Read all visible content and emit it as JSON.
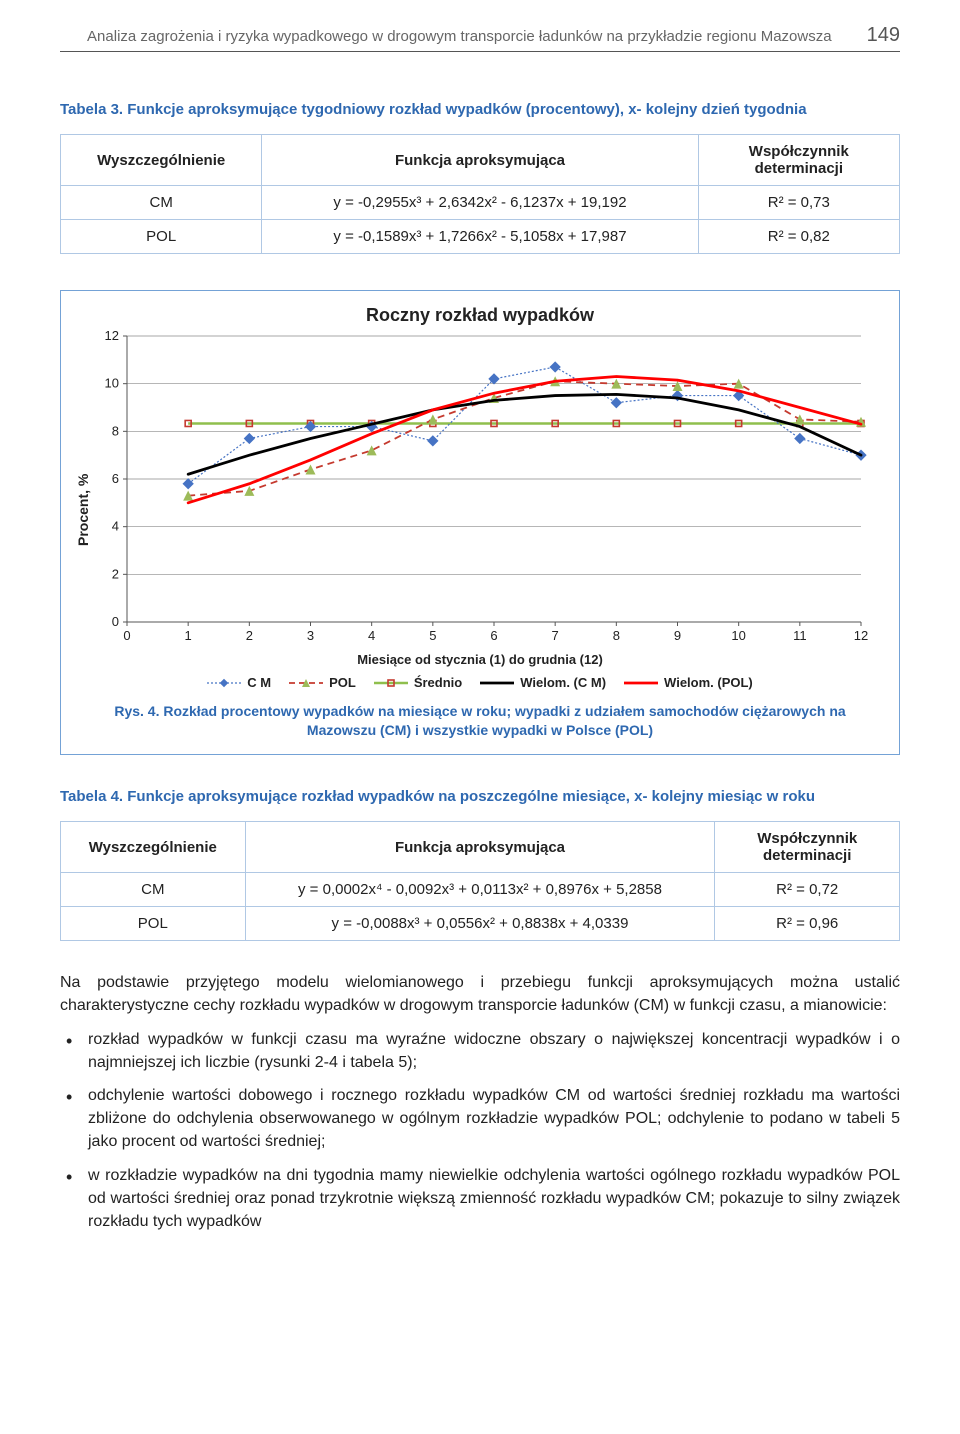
{
  "header": {
    "running_title": "Analiza zagrożenia i ryzyka wypadkowego w drogowym transporcie ładunków na przykładzie regionu Mazowsza",
    "page_number": "149"
  },
  "table3": {
    "caption": "Tabela 3. Funkcje aproksymujące tygodniowy rozkład wypadków (procentowy), x- kolejny dzień tygodnia",
    "col1": "Wyszczególnienie",
    "col2": "Funkcja aproksymująca",
    "col3": "Współczynnik determinacji",
    "r1c1": "CM",
    "r1c2": "y = -0,2955x³ + 2,6342x² - 6,1237x + 19,192",
    "r1c3": "R² = 0,73",
    "r2c1": "POL",
    "r2c2": "y = -0,1589x³ + 1,7266x² - 5,1058x + 17,987",
    "r2c3": "R² = 0,82"
  },
  "chart": {
    "type": "line+scatter",
    "title": "Roczny rozkład wypadków",
    "ylabel": "Procent, %",
    "xlabel": "Miesiące od stycznia (1)  do grudnia  (12)",
    "xlim": [
      0,
      12
    ],
    "ylim": [
      0,
      12
    ],
    "xticks": [
      0,
      1,
      2,
      3,
      4,
      5,
      6,
      7,
      8,
      9,
      10,
      11,
      12
    ],
    "yticks": [
      0,
      2,
      4,
      6,
      8,
      10,
      12
    ],
    "grid_color": "#8a8a8a",
    "background_color": "#ffffff",
    "series_labels": {
      "cm": "C M",
      "pol": "POL",
      "mean": "Średnio",
      "poly_cm": "Wielom. (C M)",
      "poly_pol": "Wielom. (POL)"
    },
    "colors": {
      "cm": "#4673c4",
      "pol": "#c53a2f",
      "mean": "#8fbf4d",
      "poly_cm": "#000000",
      "poly_pol": "#ff0000"
    },
    "marker_size": 4,
    "mean_box_marker": 6,
    "line_widths": {
      "cm": 1.2,
      "pol": 1.8,
      "mean": 2.5,
      "poly_cm": 2.8,
      "poly_pol": 2.8
    },
    "cm_x": [
      1,
      2,
      3,
      4,
      5,
      6,
      7,
      8,
      9,
      10,
      11,
      12
    ],
    "cm_y": [
      5.8,
      7.7,
      8.2,
      8.2,
      7.6,
      10.2,
      10.7,
      9.2,
      9.5,
      9.5,
      7.7,
      7.0
    ],
    "pol_x": [
      1,
      2,
      3,
      4,
      5,
      6,
      7,
      8,
      9,
      10,
      11,
      12
    ],
    "pol_y": [
      5.3,
      5.5,
      6.4,
      7.2,
      8.5,
      9.4,
      10.1,
      10.0,
      9.9,
      10.0,
      8.5,
      8.4
    ],
    "mean_x": [
      1,
      2,
      3,
      4,
      5,
      6,
      7,
      8,
      9,
      10,
      11,
      12
    ],
    "mean_y": [
      8.33,
      8.33,
      8.33,
      8.33,
      8.33,
      8.33,
      8.33,
      8.33,
      8.33,
      8.33,
      8.33,
      8.33
    ],
    "polycm_x": [
      1,
      1.5,
      2,
      3,
      4,
      5,
      6,
      7,
      8,
      9,
      10,
      11,
      12
    ],
    "polycm_y": [
      6.2,
      6.6,
      7.0,
      7.7,
      8.3,
      8.9,
      9.3,
      9.5,
      9.55,
      9.4,
      8.9,
      8.2,
      7.0
    ],
    "polypol_x": [
      1,
      1.5,
      2,
      3,
      4,
      5,
      6,
      7,
      8,
      9,
      10,
      11,
      12
    ],
    "polypol_y": [
      5.0,
      5.4,
      5.8,
      6.8,
      7.9,
      8.9,
      9.6,
      10.1,
      10.3,
      10.15,
      9.7,
      9.0,
      8.3
    ]
  },
  "fig4_caption": "Rys. 4. Rozkład procentowy wypadków na miesiące w roku; wypadki z udziałem samochodów ciężarowych na Mazowszu (CM) i wszystkie wypadki w Polsce (POL)",
  "table4": {
    "caption": "Tabela 4. Funkcje aproksymujące rozkład wypadków na poszczególne miesiące, x- kolejny miesiąc w roku",
    "col1": "Wyszczególnienie",
    "col2": "Funkcja aproksymująca",
    "col3": "Współczynnik determinacji",
    "r1c1": "CM",
    "r1c2": "y = 0,0002x⁴ - 0,0092x³ + 0,0113x² + 0,8976x + 5,2858",
    "r1c3": "R² = 0,72",
    "r2c1": "POL",
    "r2c2": "y = -0,0088x³ + 0,0556x² + 0,8838x + 4,0339",
    "r2c3": "R² = 0,96"
  },
  "paragraph": "Na podstawie przyjętego modelu wielomianowego i przebiegu funkcji aproksymujących można ustalić charakterystyczne cechy rozkładu wypadków w drogowym transporcie ładunków (CM) w funkcji czasu, a mianowicie:",
  "bullets": [
    "rozkład wypadków w funkcji czasu ma wyraźne widoczne obszary o największej koncentracji wypadków i o najmniejszej ich liczbie (rysunki 2-4 i tabela 5);",
    "odchylenie wartości dobowego i rocznego rozkładu wypadków CM od wartości średniej rozkładu ma wartości zbliżone do odchylenia obserwowanego w ogólnym rozkładzie wypadków POL; odchylenie to podano w tabeli 5 jako procent od wartości średniej;",
    "w rozkładzie wypadków na dni tygodnia mamy niewielkie odchylenia wartości ogólnego rozkładu wypadków POL od wartości średniej oraz ponad trzykrotnie większą zmienność rozkładu wypadków CM; pokazuje to silny związek rozkładu tych wypadków"
  ]
}
